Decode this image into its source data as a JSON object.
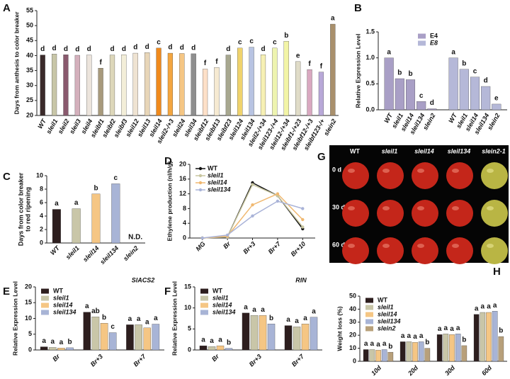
{
  "chart_data": [
    {
      "type": "bar",
      "panel_label": "A",
      "ylabel": "Days from anthesis to color breaker",
      "categories": [
        "WT",
        "sleil1",
        "sleil2",
        "sleil3",
        "sleil4",
        "sleibf1",
        "sleibf2",
        "sleibf3",
        "sleil12",
        "sleil13",
        "sleil14",
        "sleil2-/+3",
        "sleil24",
        "sleil34",
        "sleibf12",
        "sleibf13",
        "sleibf23",
        "sleil124",
        "sleil134",
        "sleil2-/+34",
        "sleil123-/+4",
        "sleil12-/+34",
        "sleibf1-/+23",
        "sleibf12-/+3",
        "sleibf123-/+",
        "slein2"
      ],
      "series": [
        {
          "values": [
            40.2,
            40.5,
            40.3,
            40.1,
            40.2,
            35.8,
            40.2,
            40.3,
            40.8,
            41,
            42.5,
            40.8,
            40.7,
            40.6,
            35.5,
            36,
            40.2,
            42.5,
            42.8,
            40.3,
            42.5,
            44.8,
            38,
            35.3,
            34.5,
            50.5
          ],
          "colors": [
            "#3a2a2a",
            "#c8c6a8",
            "#8a5a6e",
            "#d4b0bc",
            "#ece4dc",
            "#a89a7c",
            "#ddd7ba",
            "#f3eed8",
            "#efe3d2",
            "#e8d6b8",
            "#f08a1c",
            "#f4a640",
            "#f5c684",
            "#8e8e8e",
            "#fde0c8",
            "#f6ead2",
            "#a8a890",
            "#f0d36c",
            "#b8c4e2",
            "#f6f0b4",
            "#eef4b0",
            "#f2f4a6",
            "#e0dcc8",
            "#d9a8c0",
            "#b8a8d8",
            "#a9906c"
          ],
          "annotations": [
            "d",
            "d",
            "d",
            "d",
            "d",
            "f",
            "d",
            "d",
            "d",
            "d",
            "c",
            "d",
            "d",
            "d",
            "f",
            "f",
            "d",
            "c",
            "c",
            "d",
            "c",
            "b",
            "e",
            "f",
            "f",
            "a"
          ]
        }
      ],
      "ylim": [
        20,
        55
      ],
      "yticks": [
        20,
        25,
        30,
        35,
        40,
        45,
        50,
        55
      ]
    },
    {
      "type": "bar",
      "panel_label": "B",
      "ylabel": "Relative Expression Level",
      "grouping": "series",
      "legend": "upper center",
      "categories": [
        "WT",
        "sleil1",
        "sleil14",
        "sleil134",
        "slein2"
      ],
      "series": [
        {
          "name": "E4",
          "color": "#a99fc6",
          "values": [
            1.0,
            0.6,
            0.58,
            0.16,
            0.02
          ],
          "annotations": [
            "a",
            "b",
            "b",
            "c",
            "d"
          ]
        },
        {
          "name": "E8",
          "color": "#b5b8d8",
          "values": [
            1.0,
            0.78,
            0.63,
            0.45,
            0.11
          ],
          "annotations": [
            "a",
            "b",
            "c",
            "d",
            "e"
          ]
        }
      ],
      "ylim": [
        0,
        1.5
      ],
      "yticks": [
        {
          "value": 0,
          "label": "0.0"
        },
        {
          "value": 0.5,
          "label": "0.5"
        },
        {
          "value": 1,
          "label": "1.0"
        },
        {
          "value": 1.5,
          "label": "1.5"
        }
      ]
    },
    {
      "type": "bar",
      "panel_label": "C",
      "ylabel": [
        "Days from color breaker",
        "to red ripening"
      ],
      "categories": [
        "WT",
        "sleil1",
        "sleil14",
        "sleil134",
        "slein2"
      ],
      "series": [
        {
          "values": [
            5,
            5.1,
            7.3,
            8.8,
            null
          ],
          "colors": [
            "#2d1e1e",
            "#c9c6a8",
            "#f5c684",
            "#a8b4d6",
            "#888888"
          ],
          "annotations": [
            "a",
            "a",
            "b",
            "c",
            "N.D."
          ]
        }
      ],
      "ylim": [
        0,
        10
      ],
      "yticks": [
        0,
        2,
        4,
        6,
        8,
        10
      ]
    },
    {
      "type": "line",
      "panel_label": "D",
      "ylabel": "Ethylene production (nl/h/g)",
      "legend": "upper left",
      "categories": [
        "MG",
        "Br",
        "Br+3",
        "Br+7",
        "Br+10"
      ],
      "series": [
        {
          "name": "WT",
          "color": "#111111",
          "values": [
            0,
            0.3,
            15,
            11.5,
            2.5
          ]
        },
        {
          "name": "sleil1",
          "color": "#c8c6a0",
          "values": [
            0,
            0.3,
            14.5,
            11.5,
            3
          ]
        },
        {
          "name": "sleil14",
          "color": "#f0b870",
          "values": [
            0,
            0.5,
            9,
            12,
            5
          ]
        },
        {
          "name": "sleil134",
          "color": "#a9b3d8",
          "values": [
            0,
            0.8,
            6,
            10,
            8
          ]
        }
      ],
      "ylim": [
        0,
        20
      ],
      "yticks": [
        0,
        4,
        8,
        12,
        16,
        20
      ]
    },
    {
      "type": "bar",
      "panel_label": "E",
      "title": "SlACS2",
      "ylabel": "Relative Expression Level",
      "legend": "upper left",
      "categories": [
        "Br",
        "Br+3",
        "Br+7"
      ],
      "series": [
        {
          "name": "WT",
          "color": "#2d1e1e",
          "values": [
            1,
            12,
            8
          ],
          "annotations": [
            "a",
            "a",
            "a"
          ]
        },
        {
          "name": "sleil1",
          "color": "#c9c6a8",
          "values": [
            0.8,
            10.5,
            8
          ],
          "annotations": [
            "a",
            "ab",
            "a"
          ]
        },
        {
          "name": "sleil14",
          "color": "#f5c684",
          "values": [
            0.6,
            8.5,
            7
          ],
          "annotations": [
            "a",
            "b",
            "a"
          ]
        },
        {
          "name": "sleil134",
          "color": "#a8b4d6",
          "values": [
            0.7,
            5.5,
            8.2
          ],
          "annotations": [
            "b",
            "c",
            "a"
          ]
        }
      ],
      "ylim": [
        0,
        20
      ],
      "yticks": [
        0,
        5,
        10,
        15,
        20
      ]
    },
    {
      "type": "bar",
      "panel_label": "F",
      "title": "RIN",
      "ylabel": "Relative Expression Level",
      "legend": "upper left",
      "categories": [
        "Br",
        "Br+3",
        "Br+7"
      ],
      "series": [
        {
          "name": "WT",
          "color": "#2d1e1e",
          "values": [
            1,
            8.8,
            5.8
          ],
          "annotations": [
            "a",
            "a",
            "a"
          ]
        },
        {
          "name": "sleil1",
          "color": "#c9c6a8",
          "values": [
            0.8,
            8.2,
            5.5
          ],
          "annotations": [
            "a",
            "a",
            "a"
          ]
        },
        {
          "name": "sleil14",
          "color": "#f5c684",
          "values": [
            1,
            8.2,
            6.2
          ],
          "annotations": [
            "a",
            "a",
            "a"
          ]
        },
        {
          "name": "sleil134",
          "color": "#a8b4d6",
          "values": [
            0.4,
            6.2,
            7.8
          ],
          "annotations": [
            "b",
            "b",
            "a"
          ]
        }
      ],
      "ylim": [
        0,
        15
      ],
      "yticks": [
        0,
        5,
        10,
        15
      ]
    },
    {
      "type": "bar",
      "panel_label": "H",
      "ylabel": "Weight loss (%)",
      "legend": "upper left",
      "categories": [
        "10d",
        "20d",
        "30d",
        "60d"
      ],
      "series": [
        {
          "name": "WT",
          "color": "#2d1e1e",
          "values": [
            9,
            15,
            20.5,
            36
          ],
          "annotations": [
            "a",
            "a",
            "a",
            "a"
          ]
        },
        {
          "name": "sleil1",
          "color": "#c9c6a8",
          "values": [
            9,
            15,
            21,
            37.5
          ],
          "annotations": [
            "a",
            "a",
            "a",
            "a"
          ]
        },
        {
          "name": "sleil14",
          "color": "#f5c684",
          "values": [
            8.5,
            14.5,
            20.5,
            37.5
          ],
          "annotations": [
            "a",
            "a",
            "a",
            "a"
          ]
        },
        {
          "name": "sleil134",
          "color": "#a8b4d6",
          "values": [
            9,
            15,
            21,
            38.5
          ],
          "annotations": [
            "a",
            "a",
            "a",
            "a"
          ]
        },
        {
          "name": "slein2",
          "color": "#b8a07a",
          "values": [
            7,
            10,
            12,
            19
          ],
          "annotations": [
            "b",
            "b",
            "b",
            "b"
          ]
        }
      ],
      "ylim": [
        0,
        50
      ],
      "yticks": [
        0,
        10,
        20,
        30,
        40,
        50
      ]
    }
  ],
  "photo": {
    "panel_label": "G",
    "columns": [
      "WT",
      "sleil1",
      "sleil14",
      "sleil134",
      "slein2-1"
    ],
    "rows": [
      "0 d",
      "30 d",
      "60 d"
    ]
  }
}
